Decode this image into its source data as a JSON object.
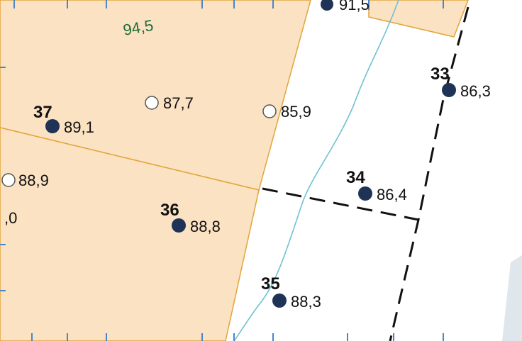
{
  "map": {
    "elevation_text": "94,5",
    "partial_label_top": "91,5",
    "partial_label_left": ",0",
    "colors": {
      "parcel_fill": "#fbe2c2",
      "parcel_border": "#e2a43a",
      "stream": "#6fc2d2",
      "dashed_line": "#111111",
      "point_fill": "#1e3356",
      "open_point_stroke": "#555555",
      "elevation_text": "#1f6b3a",
      "grid_line": "#4a86c6",
      "gray_shade": "#dfe6ec"
    },
    "points_solid": [
      {
        "id": "37",
        "value": "89,1"
      },
      {
        "id": "36",
        "value": "88,8"
      },
      {
        "id": "35",
        "value": "88,3"
      },
      {
        "id": "34",
        "value": "86,4"
      },
      {
        "id": "33",
        "value": "86,3"
      }
    ],
    "points_open": [
      {
        "value": "87,7"
      },
      {
        "value": "85,9"
      },
      {
        "value": "88,9"
      }
    ]
  }
}
